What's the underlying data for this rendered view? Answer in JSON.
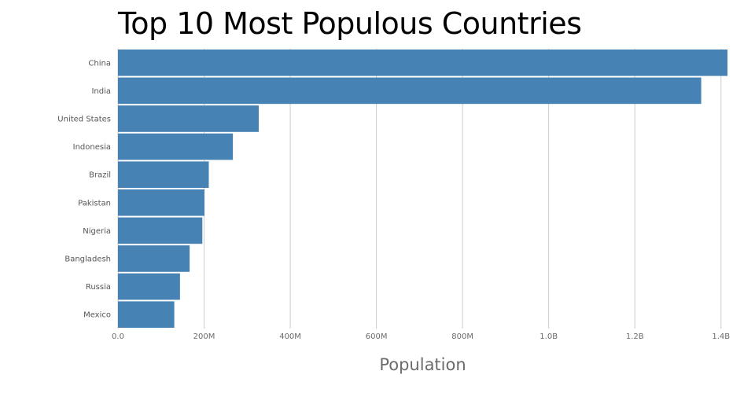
{
  "chart_data": {
    "type": "bar",
    "orientation": "horizontal",
    "title": "Top 10 Most Populous Countries",
    "xlabel": "Population",
    "ylabel": "",
    "categories": [
      "China",
      "India",
      "United States",
      "Indonesia",
      "Brazil",
      "Pakistan",
      "Nigeria",
      "Bangladesh",
      "Russia",
      "Mexico"
    ],
    "values": [
      1415045928,
      1354051854,
      326766748,
      266794980,
      210867954,
      200813818,
      195875237,
      166368149,
      143964709,
      130759074
    ],
    "xlim": [
      0,
      1415045928
    ],
    "x_ticks": [
      0,
      200000000,
      400000000,
      600000000,
      800000000,
      1000000000,
      1200000000,
      1400000000
    ],
    "x_tick_labels": [
      "0.0",
      "200M",
      "400M",
      "600M",
      "800M",
      "1.0B",
      "1.2B",
      "1.4B"
    ],
    "grid": true,
    "bar_color": "#4682b4",
    "grid_color": "#cccccc"
  }
}
